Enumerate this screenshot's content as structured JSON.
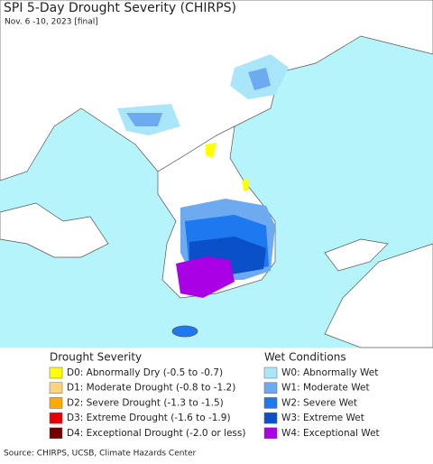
{
  "header": {
    "title": "SPI 5-Day Drought Severity (CHIRPS)",
    "subtitle": "Nov. 6 -10, 2023 [final]"
  },
  "legend": {
    "groups": [
      {
        "title": "Drought Severity",
        "items": [
          {
            "label": "D0: Abnormally Dry (-0.5 to -0.7)",
            "color": "#ffff00"
          },
          {
            "label": "D1: Moderate Drought (-0.8 to -1.2)",
            "color": "#fcd37f"
          },
          {
            "label": "D2: Severe Drought (-1.3 to -1.5)",
            "color": "#ffaa00"
          },
          {
            "label": "D3: Extreme Drought (-1.6 to -1.9)",
            "color": "#e60000"
          },
          {
            "label": "D4: Exceptional Drought (-2.0 or less)",
            "color": "#730000"
          }
        ]
      },
      {
        "title": "Wet Conditions",
        "items": [
          {
            "label": "W0: Abnormally Wet",
            "color": "#aae6fa"
          },
          {
            "label": "W1: Moderate Wet",
            "color": "#6eaaf0"
          },
          {
            "label": "W2: Severe Wet",
            "color": "#1e78f0"
          },
          {
            "label": "W3: Extreme Wet",
            "color": "#0a50c8"
          },
          {
            "label": "W4: Exceptional Wet",
            "color": "#aa00e6"
          }
        ]
      }
    ]
  },
  "footer": {
    "source": "Source: CHIRPS, UCSB, Climate Hazards Center"
  }
}
